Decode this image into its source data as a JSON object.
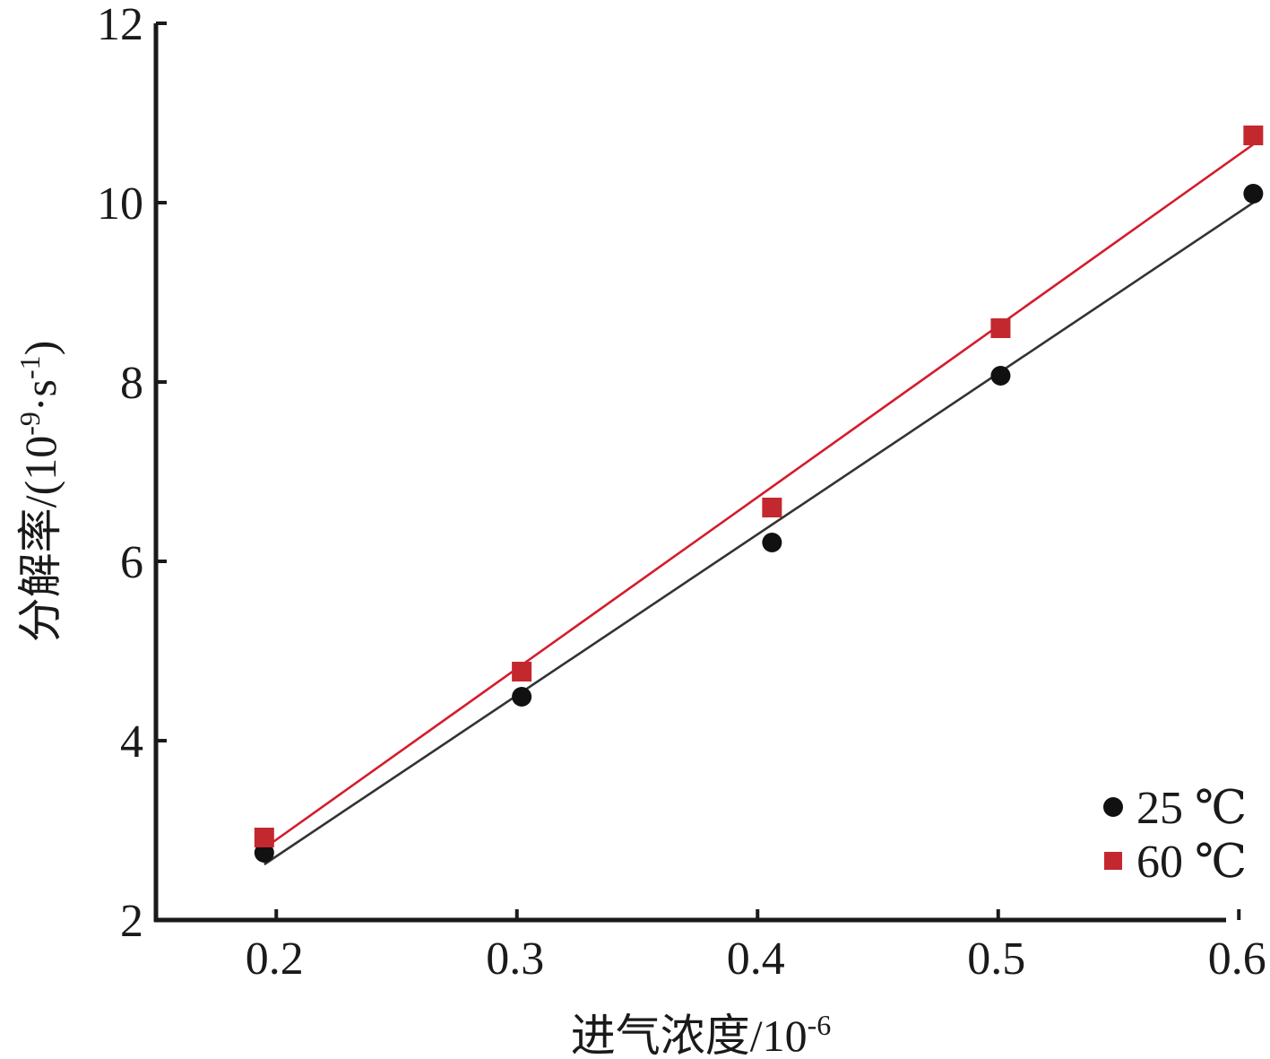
{
  "chart_data": {
    "type": "scatter",
    "xlabel": "进气浓度/10",
    "xlabel_sup": "-6",
    "ylabel_parts": [
      "分解率/(10",
      "-9",
      "·s",
      "-1",
      ")"
    ],
    "xlim": [
      0.15,
      0.6
    ],
    "ylim": [
      2,
      12
    ],
    "xticks": [
      0.2,
      0.3,
      0.4,
      0.5,
      0.6
    ],
    "xtick_labels": [
      "0.2",
      "0.3",
      "0.4",
      "0.5",
      "0.6"
    ],
    "yticks": [
      2,
      4,
      6,
      8,
      10,
      12
    ],
    "ytick_labels": [
      "2",
      "4",
      "6",
      "8",
      "10",
      "12"
    ],
    "grid": false,
    "legend_position": "bottom-right",
    "series": [
      {
        "name": "25 ℃",
        "marker": "circle",
        "color": "#111111",
        "line_color": "#333333",
        "x": [
          0.195,
          0.302,
          0.406,
          0.501,
          0.606
        ],
        "y": [
          2.75,
          4.49,
          6.21,
          8.07,
          10.1
        ],
        "fit": [
          [
            0.195,
            2.62
          ],
          [
            0.606,
            10.0
          ]
        ]
      },
      {
        "name": "60 ℃",
        "marker": "square",
        "color": "#c4282f",
        "line_color": "#d41c2c",
        "x": [
          0.195,
          0.302,
          0.406,
          0.501,
          0.606
        ],
        "y": [
          2.92,
          4.77,
          6.6,
          8.6,
          10.75
        ],
        "fit": [
          [
            0.195,
            2.8
          ],
          [
            0.606,
            10.65
          ]
        ]
      }
    ]
  }
}
